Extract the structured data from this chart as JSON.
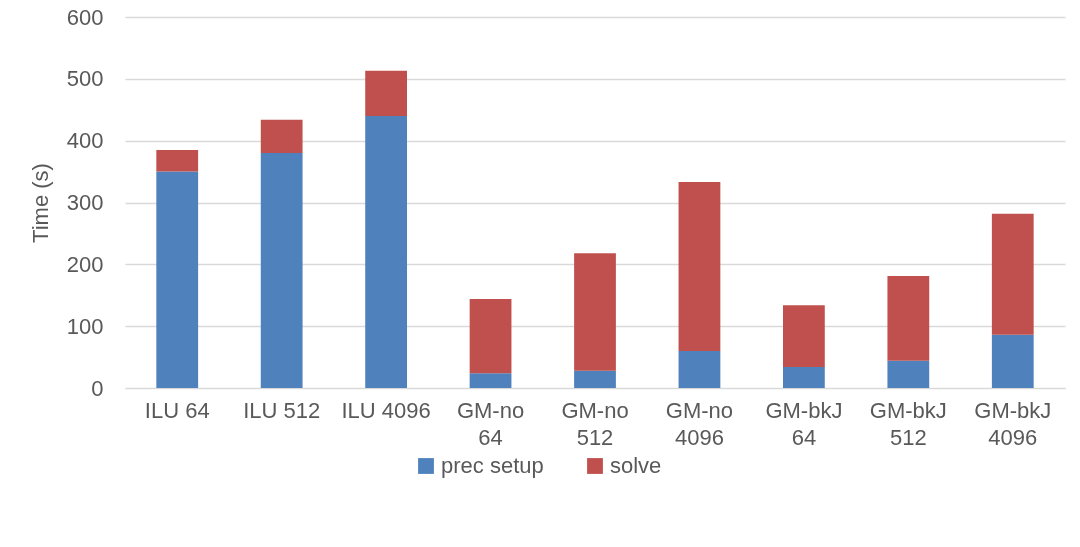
{
  "chart_data": {
    "type": "bar",
    "stacked": true,
    "ylabel": "Time (s)",
    "categories": [
      "ILU 64",
      "ILU 512",
      "ILU 4096",
      "GM-no\n64",
      "GM-no\n512",
      "GM-no\n4096",
      "GM-bkJ\n64",
      "GM-bkJ\n512",
      "GM-bkJ\n4096"
    ],
    "series": [
      {
        "name": "prec setup",
        "color": "#4f81bd",
        "values": [
          350,
          380,
          440,
          24,
          28,
          60,
          34,
          44,
          86
        ]
      },
      {
        "name": "solve",
        "color": "#c0504d",
        "values": [
          35,
          54,
          73,
          120,
          190,
          273,
          100,
          137,
          196
        ]
      }
    ],
    "ylim": [
      0,
      600
    ],
    "yticks": [
      0,
      100,
      200,
      300,
      400,
      500,
      600
    ],
    "grid": "y",
    "legend": "bottom"
  }
}
